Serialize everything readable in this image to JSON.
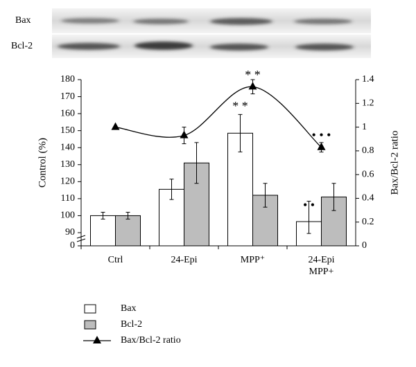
{
  "blot_labels": [
    "Bax",
    "Bcl-2"
  ],
  "chart_data": {
    "type": "bar",
    "categories": [
      "Ctrl",
      "24-Epi",
      "MPP⁺",
      "24-Epi MPP+"
    ],
    "series": [
      {
        "name": "Bax",
        "color": "#ffffff",
        "values": [
          100,
          115.5,
          148.5,
          96.5
        ],
        "errors": [
          2,
          6,
          11,
          12
        ]
      },
      {
        "name": "Bcl-2",
        "color": "#bdbdbd",
        "values": [
          100,
          131,
          112,
          111
        ],
        "errors": [
          2,
          12,
          7,
          8
        ]
      },
      {
        "name": "Bax/Bcl-2 ratio",
        "type": "line",
        "axis": "y2",
        "color": "#000000",
        "values": [
          1.0,
          0.93,
          1.34,
          0.83
        ],
        "errors": [
          0,
          0.07,
          0.06,
          0.04
        ]
      }
    ],
    "ylabel": "Control (%)",
    "y2label": "Bax/Bcl-2 ratio",
    "ylim": [
      0,
      180
    ],
    "y_break": [
      0,
      90
    ],
    "yticks": [
      0,
      90,
      100,
      110,
      120,
      130,
      140,
      150,
      160,
      170,
      180
    ],
    "y2lim": [
      0,
      1.4
    ],
    "y2ticks": [
      0,
      0.2,
      0.4,
      0.6,
      0.8,
      1,
      1.2,
      1.4
    ],
    "annotations": [
      "* *",
      "* *",
      "• • •",
      "• •"
    ]
  }
}
